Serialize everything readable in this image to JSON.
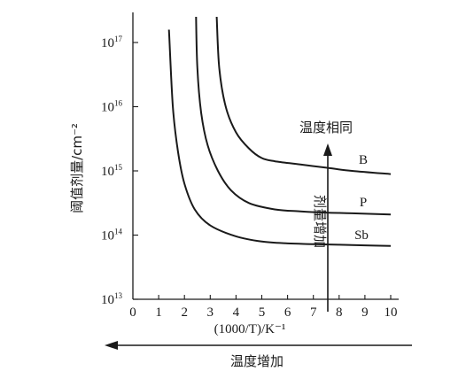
{
  "chart_data": {
    "type": "line",
    "xlabel": "(1000/T)/K⁻¹",
    "ylabel": "阈值剂量/cm⁻²",
    "xlim": [
      0,
      10
    ],
    "ylim_exponent": [
      13,
      17.5
    ],
    "y_scale": "log",
    "x_ticks": [
      "0",
      "1",
      "2",
      "3",
      "4",
      "5",
      "6",
      "7",
      "8",
      "9",
      "10"
    ],
    "y_ticks": [
      {
        "base": "10",
        "exp": "13",
        "value": 13
      },
      {
        "base": "10",
        "exp": "14",
        "value": 14
      },
      {
        "base": "10",
        "exp": "15",
        "value": 15
      },
      {
        "base": "10",
        "exp": "16",
        "value": 16
      },
      {
        "base": "10",
        "exp": "17",
        "value": 17
      }
    ],
    "series": [
      {
        "name": "Sb",
        "x": [
          1.4,
          1.55,
          1.75,
          2.0,
          2.4,
          3.0,
          4.0,
          5.0,
          6.0,
          7.0,
          8.0,
          9.0,
          10.0
        ],
        "y_log10": [
          17.2,
          16.0,
          15.3,
          14.8,
          14.4,
          14.15,
          13.98,
          13.9,
          13.87,
          13.86,
          13.85,
          13.84,
          13.83
        ]
      },
      {
        "name": "P",
        "x": [
          2.45,
          2.5,
          2.65,
          2.9,
          3.3,
          3.8,
          4.5,
          5.5,
          6.5,
          7.5,
          8.5,
          10.0
        ],
        "y_log10": [
          17.4,
          16.6,
          15.9,
          15.4,
          15.0,
          14.7,
          14.5,
          14.4,
          14.37,
          14.35,
          14.34,
          14.32
        ]
      },
      {
        "name": "B",
        "x": [
          3.25,
          3.35,
          3.6,
          4.0,
          4.5,
          5.0,
          5.5,
          6.5,
          7.5,
          8.5,
          10.0
        ],
        "y_log10": [
          17.4,
          16.6,
          16.0,
          15.6,
          15.35,
          15.2,
          15.15,
          15.1,
          15.05,
          15.0,
          14.95
        ]
      }
    ],
    "annotations": {
      "temp_same": "温度相同",
      "dose_increase": "剂量增加",
      "temp_increase": "温度增加"
    }
  }
}
